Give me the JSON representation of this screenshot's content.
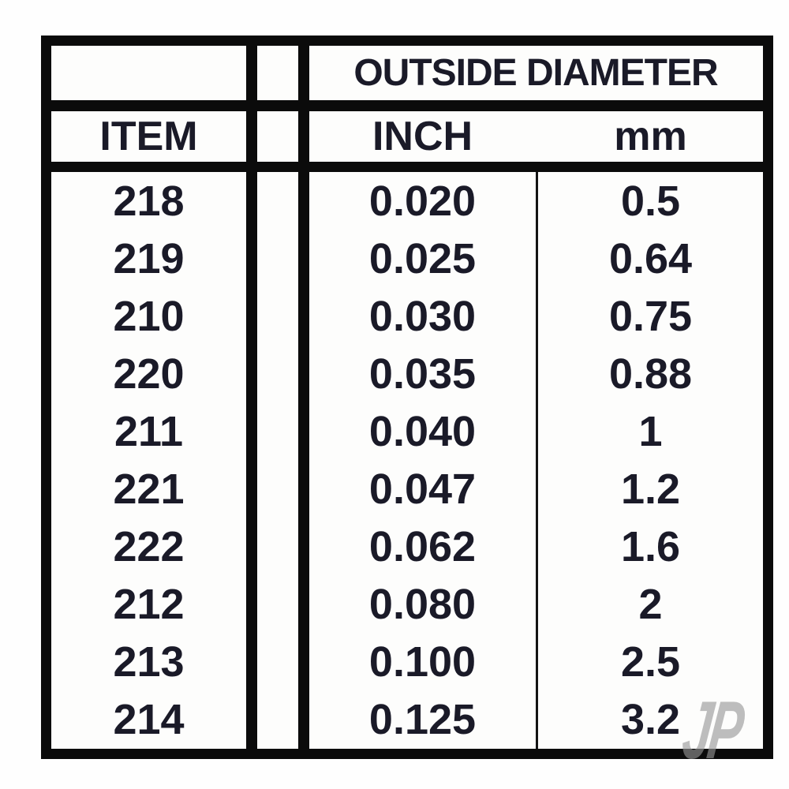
{
  "colors": {
    "border": "#0b0b0b",
    "text": "#1a1a28",
    "table_background": "#fdfdfc",
    "page_background": "#fefefe",
    "watermark": "#969696"
  },
  "watermark": {
    "text": "JP"
  },
  "chart_data": {
    "type": "table",
    "title": "OUTSIDE DIAMETER",
    "columns": [
      "ITEM",
      "INCH",
      "mm"
    ],
    "column_groups": [
      {
        "label": "OUTSIDE DIAMETER",
        "spans": [
          "INCH",
          "mm"
        ]
      }
    ],
    "rows": [
      [
        "218",
        "0.020",
        "0.5"
      ],
      [
        "219",
        "0.025",
        "0.64"
      ],
      [
        "210",
        "0.030",
        "0.75"
      ],
      [
        "220",
        "0.035",
        "0.88"
      ],
      [
        "211",
        "0.040",
        "1"
      ],
      [
        "221",
        "0.047",
        "1.2"
      ],
      [
        "222",
        "0.062",
        "1.6"
      ],
      [
        "212",
        "0.080",
        "2"
      ],
      [
        "213",
        "0.100",
        "2.5"
      ],
      [
        "214",
        "0.125",
        "3.2"
      ]
    ]
  }
}
